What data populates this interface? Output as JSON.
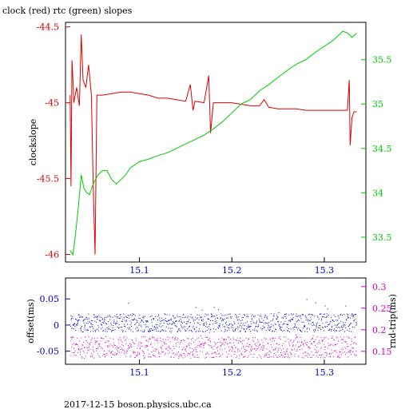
{
  "title": "clock (red) rtc (green) slopes",
  "footer": "2017-12-15  boson.physics.ubc.ca",
  "colors": {
    "red": "#dd0000",
    "green": "#00cc00",
    "blue": "#0000cc",
    "magenta": "#cc00cc",
    "axis": "#000000"
  },
  "chart_data": [
    {
      "type": "line",
      "title": "clock (red) rtc (green) slopes",
      "ylabel": "clockslope",
      "xlim": [
        15.02,
        15.345
      ],
      "ylim_left": [
        -46.05,
        -44.47
      ],
      "ylim_right": [
        33.22,
        35.92
      ],
      "x_ticks": [
        "15.1",
        "15.2",
        "15.3"
      ],
      "y_left_ticks": [
        "-44.5",
        "-45",
        "-45.5",
        "-46"
      ],
      "y_right_ticks": [
        "35.5",
        "35",
        "34.5",
        "34",
        "33.5"
      ],
      "series": [
        {
          "axis": "left",
          "color": "red",
          "points": [
            [
              15.025,
              -44.95
            ],
            [
              15.026,
              -45.55
            ],
            [
              15.027,
              -44.72
            ],
            [
              15.028,
              -44.85
            ],
            [
              15.029,
              -45.0
            ],
            [
              15.032,
              -44.9
            ],
            [
              15.035,
              -45.02
            ],
            [
              15.037,
              -44.55
            ],
            [
              15.039,
              -44.85
            ],
            [
              15.042,
              -44.9
            ],
            [
              15.045,
              -44.75
            ],
            [
              15.048,
              -44.95
            ],
            [
              15.05,
              -45.55
            ],
            [
              15.052,
              -46.0
            ],
            [
              15.054,
              -44.95
            ],
            [
              15.06,
              -44.95
            ],
            [
              15.07,
              -44.94
            ],
            [
              15.08,
              -44.93
            ],
            [
              15.09,
              -44.93
            ],
            [
              15.1,
              -44.94
            ],
            [
              15.11,
              -44.95
            ],
            [
              15.12,
              -44.97
            ],
            [
              15.13,
              -44.97
            ],
            [
              15.14,
              -44.98
            ],
            [
              15.15,
              -44.99
            ],
            [
              15.155,
              -44.88
            ],
            [
              15.158,
              -45.05
            ],
            [
              15.16,
              -44.99
            ],
            [
              15.17,
              -45.0
            ],
            [
              15.175,
              -44.82
            ],
            [
              15.177,
              -45.2
            ],
            [
              15.18,
              -45.0
            ],
            [
              15.19,
              -45.0
            ],
            [
              15.2,
              -45.0
            ],
            [
              15.21,
              -45.01
            ],
            [
              15.22,
              -45.02
            ],
            [
              15.23,
              -45.02
            ],
            [
              15.235,
              -44.98
            ],
            [
              15.24,
              -45.03
            ],
            [
              15.25,
              -45.04
            ],
            [
              15.26,
              -45.04
            ],
            [
              15.27,
              -45.04
            ],
            [
              15.28,
              -45.05
            ],
            [
              15.29,
              -45.05
            ],
            [
              15.3,
              -45.05
            ],
            [
              15.31,
              -45.05
            ],
            [
              15.32,
              -45.05
            ],
            [
              15.325,
              -45.05
            ],
            [
              15.327,
              -44.85
            ],
            [
              15.328,
              -45.28
            ],
            [
              15.33,
              -45.1
            ],
            [
              15.332,
              -45.06
            ],
            [
              15.335,
              -45.06
            ]
          ]
        },
        {
          "axis": "right",
          "color": "green",
          "points": [
            [
              15.025,
              33.35
            ],
            [
              15.028,
              33.3
            ],
            [
              15.031,
              33.55
            ],
            [
              15.034,
              33.85
            ],
            [
              15.037,
              34.2
            ],
            [
              15.04,
              34.05
            ],
            [
              15.043,
              34.0
            ],
            [
              15.046,
              33.98
            ],
            [
              15.05,
              34.1
            ],
            [
              15.055,
              34.2
            ],
            [
              15.06,
              34.25
            ],
            [
              15.065,
              34.25
            ],
            [
              15.07,
              34.15
            ],
            [
              15.075,
              34.1
            ],
            [
              15.08,
              34.15
            ],
            [
              15.085,
              34.2
            ],
            [
              15.09,
              34.28
            ],
            [
              15.1,
              34.35
            ],
            [
              15.11,
              34.38
            ],
            [
              15.12,
              34.42
            ],
            [
              15.13,
              34.45
            ],
            [
              15.14,
              34.5
            ],
            [
              15.15,
              34.55
            ],
            [
              15.16,
              34.6
            ],
            [
              15.17,
              34.65
            ],
            [
              15.18,
              34.72
            ],
            [
              15.19,
              34.8
            ],
            [
              15.2,
              34.9
            ],
            [
              15.21,
              35.0
            ],
            [
              15.22,
              35.05
            ],
            [
              15.23,
              35.15
            ],
            [
              15.24,
              35.22
            ],
            [
              15.25,
              35.3
            ],
            [
              15.26,
              35.38
            ],
            [
              15.27,
              35.45
            ],
            [
              15.28,
              35.5
            ],
            [
              15.29,
              35.58
            ],
            [
              15.3,
              35.65
            ],
            [
              15.31,
              35.72
            ],
            [
              15.32,
              35.82
            ],
            [
              15.325,
              35.8
            ],
            [
              15.33,
              35.75
            ],
            [
              15.335,
              35.8
            ]
          ]
        }
      ]
    },
    {
      "type": "scatter",
      "ylabel_left": "offset(ms)",
      "ylabel_right": "rnd-trip(ms)",
      "xlim": [
        15.02,
        15.345
      ],
      "ylim_left": [
        -0.075,
        0.09
      ],
      "ylim_right": [
        0.12,
        0.32
      ],
      "x_ticks": [
        "15.1",
        "15.2",
        "15.3"
      ],
      "y_left_ticks": [
        "0.05",
        "0",
        "-0.05"
      ],
      "y_right_ticks": [
        "0.3",
        "0.25",
        "0.2",
        "0.15"
      ],
      "series": [
        {
          "axis": "left",
          "color": "blue",
          "center": 0.005,
          "spread": 0.035
        },
        {
          "axis": "right",
          "color": "magenta",
          "center": 0.16,
          "spread": 0.05
        }
      ]
    }
  ]
}
